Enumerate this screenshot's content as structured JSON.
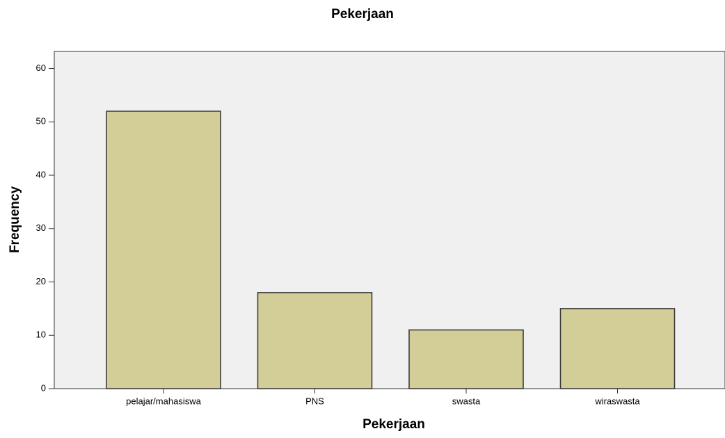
{
  "chart_data": {
    "type": "bar",
    "title": "Pekerjaan",
    "x_label": "Pekerjaan",
    "y_label": "Frequency",
    "categories": [
      "pelajar/mahasiswa",
      "PNS",
      "swasta",
      "wiraswasta"
    ],
    "values": [
      52,
      18,
      11,
      15
    ],
    "color": "#d3ce97",
    "ylim": [
      0,
      63.2
    ],
    "yticks": [
      0,
      10,
      20,
      30,
      40,
      50,
      60
    ],
    "grid": false
  }
}
